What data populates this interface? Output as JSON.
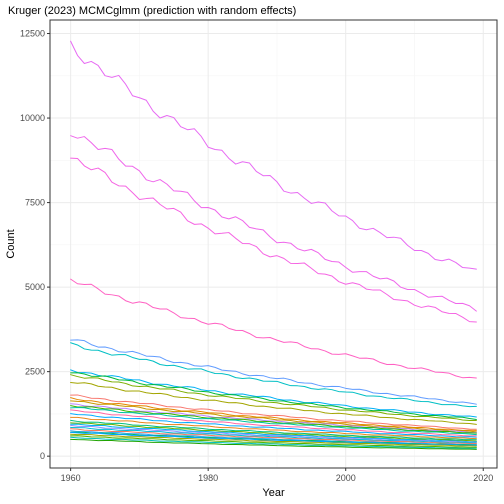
{
  "chart_data": {
    "type": "line",
    "title": "Kruger (2023) MCMCglmm (prediction with random effects)",
    "xlabel": "Year",
    "ylabel": "Count",
    "xlim": [
      1957,
      2022
    ],
    "ylim": [
      -350,
      12900
    ],
    "x_ticks": [
      1960,
      1980,
      2000,
      2020
    ],
    "y_ticks": [
      0,
      2500,
      5000,
      7500,
      10000,
      12500
    ],
    "x_tick_labels": [
      "1960",
      "1980",
      "2000",
      "2020"
    ],
    "y_tick_labels": [
      "0",
      "2500",
      "5000",
      "7500",
      "10000",
      "12500"
    ],
    "grid": true,
    "legend": "none",
    "x_range": [
      1960,
      2019
    ],
    "series": [
      {
        "start": 12150,
        "end": 5450,
        "color": "#e76bf3"
      },
      {
        "start": 9650,
        "end": 4350,
        "color": "#ef67eb"
      },
      {
        "start": 8850,
        "end": 4000,
        "color": "#f564e3"
      },
      {
        "start": 5200,
        "end": 2300,
        "color": "#ff61c3"
      },
      {
        "start": 3450,
        "end": 1550,
        "color": "#619cff"
      },
      {
        "start": 3300,
        "end": 1450,
        "color": "#00bfc4"
      },
      {
        "start": 2550,
        "end": 1150,
        "color": "#00b0f6"
      },
      {
        "start": 2500,
        "end": 1100,
        "color": "#00ba38"
      },
      {
        "start": 2400,
        "end": 1050,
        "color": "#7cae00"
      },
      {
        "start": 2200,
        "end": 950,
        "color": "#a3a500"
      },
      {
        "start": 1800,
        "end": 800,
        "color": "#f8766d"
      },
      {
        "start": 1700,
        "end": 750,
        "color": "#e58700"
      },
      {
        "start": 1650,
        "end": 720,
        "color": "#c99800"
      },
      {
        "start": 1550,
        "end": 700,
        "color": "#b983ff"
      },
      {
        "start": 1500,
        "end": 680,
        "color": "#39b600"
      },
      {
        "start": 1450,
        "end": 650,
        "color": "#00c1a3"
      },
      {
        "start": 1350,
        "end": 600,
        "color": "#ff67a4"
      },
      {
        "start": 1250,
        "end": 560,
        "color": "#00a9ff"
      },
      {
        "start": 1150,
        "end": 520,
        "color": "#e7861b"
      },
      {
        "start": 1050,
        "end": 480,
        "color": "#00bf7d"
      },
      {
        "start": 1000,
        "end": 450,
        "color": "#6bb100"
      },
      {
        "start": 950,
        "end": 430,
        "color": "#00b4f0"
      },
      {
        "start": 900,
        "end": 410,
        "color": "#8f91ff"
      },
      {
        "start": 850,
        "end": 390,
        "color": "#00bcd8"
      },
      {
        "start": 800,
        "end": 370,
        "color": "#f47b5c"
      },
      {
        "start": 750,
        "end": 340,
        "color": "#35a2ff"
      },
      {
        "start": 720,
        "end": 330,
        "color": "#00bd5c"
      },
      {
        "start": 700,
        "end": 320,
        "color": "#00a5ff"
      },
      {
        "start": 650,
        "end": 300,
        "color": "#9da700"
      },
      {
        "start": 600,
        "end": 260,
        "color": "#53b400"
      },
      {
        "start": 550,
        "end": 230,
        "color": "#00c0b8"
      },
      {
        "start": 500,
        "end": 200,
        "color": "#1fa300"
      }
    ]
  }
}
